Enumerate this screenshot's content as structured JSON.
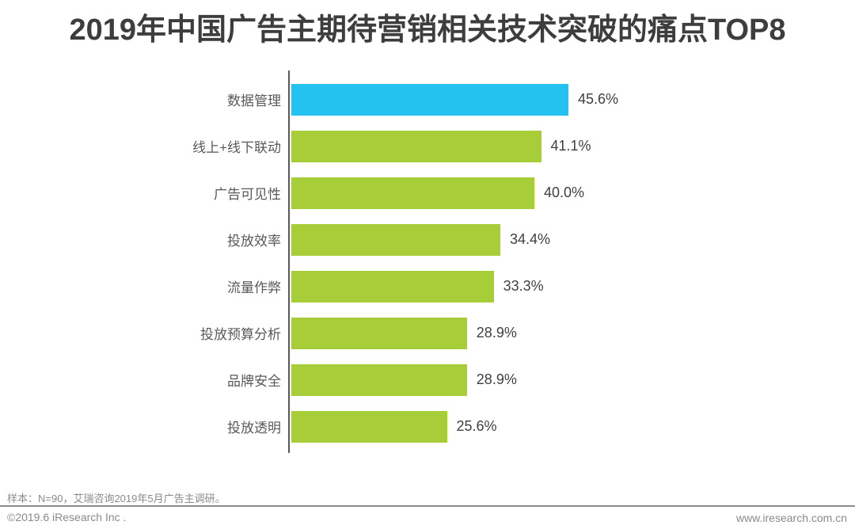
{
  "title": "2019年中国广告主期待营销相关技术突破的痛点TOP8",
  "chart_data": {
    "type": "bar",
    "orientation": "horizontal",
    "title": "2019年中国广告主期待营销相关技术突破的痛点TOP8",
    "categories": [
      "数据管理",
      "线上+线下联动",
      "广告可见性",
      "投放效率",
      "流量作弊",
      "投放预算分析",
      "品牌安全",
      "投放透明"
    ],
    "values": [
      45.6,
      41.1,
      40.0,
      34.4,
      33.3,
      28.9,
      28.9,
      25.6
    ],
    "value_labels": [
      "45.6%",
      "41.1%",
      "40.0%",
      "34.4%",
      "33.3%",
      "28.9%",
      "28.9%",
      "25.6%"
    ],
    "xlim": [
      0,
      50
    ],
    "grid": false,
    "legend": false,
    "bar_colors": [
      "#23c2ef",
      "#a7ce38",
      "#a7ce38",
      "#a7ce38",
      "#a7ce38",
      "#a7ce38",
      "#a7ce38",
      "#a7ce38"
    ],
    "highlight_color": "#23c2ef",
    "default_bar_color": "#a7ce38",
    "axis_color": "#595959",
    "label_color": "#595959",
    "value_color": "#3f3f3f"
  },
  "footer": {
    "sample_note": "样本：N=90，艾瑞咨询2019年5月广告主调研。",
    "copyright": "©2019.6 iResearch Inc .",
    "website": "www.iresearch.com.cn"
  }
}
